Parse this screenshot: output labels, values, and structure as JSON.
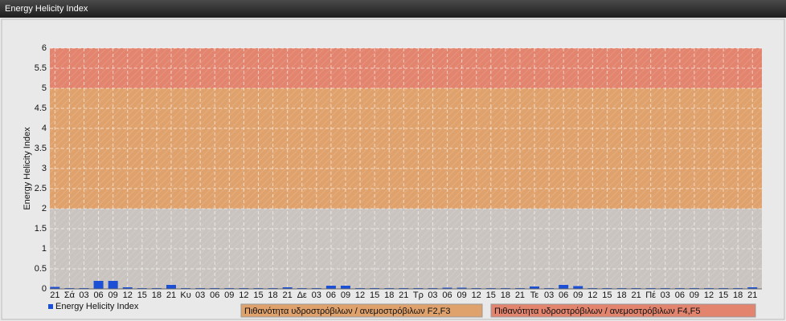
{
  "header": {
    "title": "Energy Helicity Index"
  },
  "chart_data": {
    "type": "bar",
    "y_label": "Energy Helicity Index",
    "categories": [
      "21",
      "Σά",
      "03",
      "06",
      "09",
      "12",
      "15",
      "18",
      "21",
      "Κυ",
      "03",
      "06",
      "09",
      "12",
      "15",
      "18",
      "21",
      "Δε",
      "03",
      "06",
      "09",
      "12",
      "15",
      "18",
      "21",
      "Τρ",
      "03",
      "06",
      "09",
      "12",
      "15",
      "18",
      "21",
      "Τε",
      "03",
      "06",
      "09",
      "12",
      "15",
      "18",
      "21",
      "Πέ",
      "03",
      "06",
      "09",
      "12",
      "15",
      "18",
      "21"
    ],
    "series": [
      {
        "name": "Energy Helicity Index",
        "color": "#1a4fd6",
        "values": [
          0.05,
          0.02,
          0.02,
          0.2,
          0.2,
          0.04,
          0.02,
          0.02,
          0.1,
          0.02,
          0.02,
          0.02,
          0.02,
          0.02,
          0.02,
          0.02,
          0.04,
          0.02,
          0.02,
          0.08,
          0.08,
          0.02,
          0.02,
          0.02,
          0.02,
          0.02,
          0.02,
          0.03,
          0.03,
          0.02,
          0.02,
          0.02,
          0.02,
          0.06,
          0.02,
          0.1,
          0.07,
          0.02,
          0.02,
          0.02,
          0.02,
          0.02,
          0.02,
          0.02,
          0.02,
          0.02,
          0.02,
          0.02,
          0.04
        ]
      }
    ],
    "bands": [
      {
        "from": 2,
        "to": 5,
        "color": "#e0a26c",
        "label": "Πιθανότητα υδροστρόβιλων / ανεμοστρόβιλων F2,F3"
      },
      {
        "from": 5,
        "to": 6,
        "color": "#e2846e",
        "label": "Πιθανότητα υδροστρόβιλων / ανεμοστρόβιλων F4,F5"
      }
    ],
    "ylim": [
      0,
      6
    ],
    "yticks": [
      0,
      0.5,
      1,
      1.5,
      2,
      2.5,
      3,
      3.5,
      4,
      4.5,
      5,
      5.5,
      6
    ],
    "grid": true
  }
}
